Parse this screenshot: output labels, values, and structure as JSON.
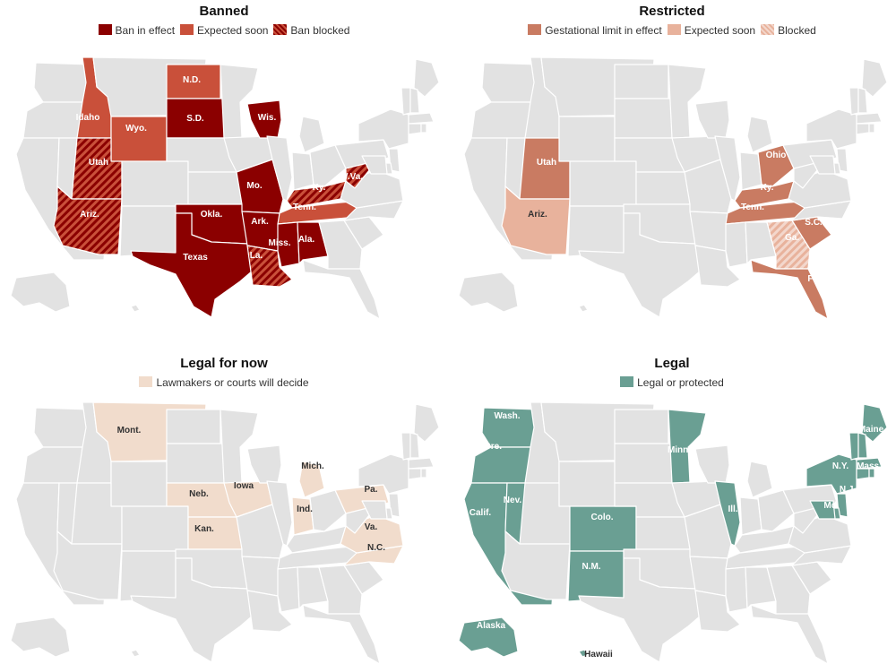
{
  "colors": {
    "base": "#e2e2e2",
    "ban": "#8b0000",
    "ban_soon": "#c9503a",
    "restrict": "#c97b62",
    "restrict_soon": "#e8b29c",
    "legal_now": "#f1dccc",
    "legal": "#6a9f93"
  },
  "panels": [
    {
      "title": "Banned",
      "legend": [
        {
          "label": "Ban in effect",
          "swatch": "ban"
        },
        {
          "label": "Expected soon",
          "swatch": "ban_soon"
        },
        {
          "label": "Ban blocked",
          "swatch": "ban_hatch"
        }
      ],
      "states": [
        {
          "name": "Idaho",
          "fill": "ban_soon"
        },
        {
          "name": "Wyo.",
          "fill": "ban_soon"
        },
        {
          "name": "N.D.",
          "fill": "ban_soon"
        },
        {
          "name": "S.D.",
          "fill": "ban"
        },
        {
          "name": "Wis.",
          "fill": "ban"
        },
        {
          "name": "Utah",
          "fill": "ban_hatch"
        },
        {
          "name": "Ariz.",
          "fill": "ban_hatch"
        },
        {
          "name": "Mo.",
          "fill": "ban"
        },
        {
          "name": "Okla.",
          "fill": "ban"
        },
        {
          "name": "Ark.",
          "fill": "ban"
        },
        {
          "name": "Texas",
          "fill": "ban"
        },
        {
          "name": "La.",
          "fill": "ban_hatch"
        },
        {
          "name": "Miss.",
          "fill": "ban"
        },
        {
          "name": "Ala.",
          "fill": "ban"
        },
        {
          "name": "Tenn.",
          "fill": "ban_soon"
        },
        {
          "name": "Ky.",
          "fill": "ban_hatch"
        },
        {
          "name": "W.Va.",
          "fill": "ban_hatch"
        }
      ]
    },
    {
      "title": "Restricted",
      "legend": [
        {
          "label": "Gestational limit in effect",
          "swatch": "restrict"
        },
        {
          "label": "Expected soon",
          "swatch": "restrict_soon"
        },
        {
          "label": "Blocked",
          "swatch": "restrict_hatch"
        }
      ],
      "states": [
        {
          "name": "Utah",
          "fill": "restrict"
        },
        {
          "name": "Ariz.",
          "fill": "restrict_soon"
        },
        {
          "name": "Ohio",
          "fill": "restrict"
        },
        {
          "name": "Ky.",
          "fill": "restrict"
        },
        {
          "name": "Tenn.",
          "fill": "restrict"
        },
        {
          "name": "S.C.",
          "fill": "restrict"
        },
        {
          "name": "Ga.",
          "fill": "restrict_hatch"
        },
        {
          "name": "Fla.",
          "fill": "restrict"
        }
      ]
    },
    {
      "title": "Legal for now",
      "legend": [
        {
          "label": "Lawmakers or courts will decide",
          "swatch": "legal_now"
        }
      ],
      "states": [
        {
          "name": "Mont.",
          "fill": "legal_now"
        },
        {
          "name": "Neb.",
          "fill": "legal_now"
        },
        {
          "name": "Kan.",
          "fill": "legal_now"
        },
        {
          "name": "Iowa",
          "fill": "legal_now"
        },
        {
          "name": "Mich.",
          "fill": "legal_now"
        },
        {
          "name": "Ind.",
          "fill": "legal_now"
        },
        {
          "name": "Pa.",
          "fill": "legal_now"
        },
        {
          "name": "Va.",
          "fill": "legal_now"
        },
        {
          "name": "N.C.",
          "fill": "legal_now"
        }
      ]
    },
    {
      "title": "Legal",
      "legend": [
        {
          "label": "Legal or protected",
          "swatch": "legal"
        }
      ],
      "states": [
        {
          "name": "Wash.",
          "fill": "legal"
        },
        {
          "name": "Ore.",
          "fill": "legal"
        },
        {
          "name": "Calif.",
          "fill": "legal"
        },
        {
          "name": "Nev.",
          "fill": "legal"
        },
        {
          "name": "Colo.",
          "fill": "legal"
        },
        {
          "name": "N.M.",
          "fill": "legal"
        },
        {
          "name": "Minn.",
          "fill": "legal"
        },
        {
          "name": "Ill.",
          "fill": "legal"
        },
        {
          "name": "N.Y.",
          "fill": "legal"
        },
        {
          "name": "Maine",
          "fill": "legal"
        },
        {
          "name": "Mass.",
          "fill": "legal"
        },
        {
          "name": "N.J.",
          "fill": "legal"
        },
        {
          "name": "Md.",
          "fill": "legal"
        },
        {
          "name": "Alaska",
          "fill": "legal"
        },
        {
          "name": "Hawaii",
          "fill": "legal"
        }
      ]
    }
  ]
}
